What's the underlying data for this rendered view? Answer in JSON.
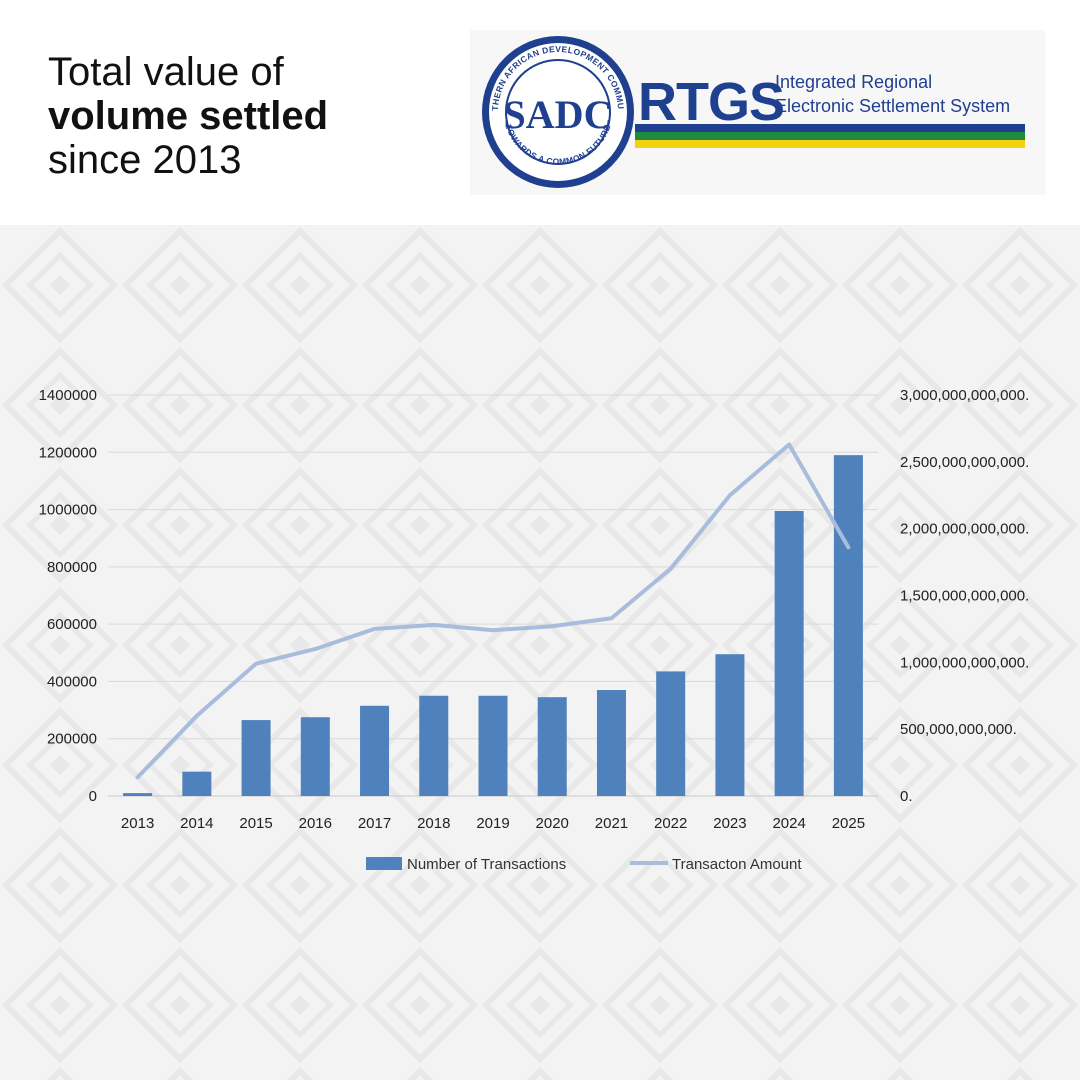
{
  "header": {
    "line1": "Total value of",
    "line2": "volume settled",
    "line3": "since 2013"
  },
  "logo": {
    "ring_top_text": "SOUTHERN AFRICAN DEVELOPMENT COMMUNITY",
    "ring_bottom_text": "TOWARDS A COMMON FUTURE",
    "emblem_text": "SADC",
    "rtgs_text": "RTGS",
    "tagline_line1": "Integrated Regional",
    "tagline_line2": "Electronic Settlement System",
    "stripe_colors": [
      "#1f3f8f",
      "#1f8a3c",
      "#f2d20f"
    ]
  },
  "chart_data": {
    "type": "bar+line",
    "categories": [
      "2013",
      "2014",
      "2015",
      "2016",
      "2017",
      "2018",
      "2019",
      "2020",
      "2021",
      "2022",
      "2023",
      "2024",
      "2025"
    ],
    "series": [
      {
        "name": "Number of Transactions",
        "type": "bar",
        "axis": "left",
        "color": "#4f81bd",
        "values": [
          10000,
          85000,
          265000,
          275000,
          315000,
          350000,
          350000,
          345000,
          370000,
          435000,
          495000,
          995000,
          1190000
        ]
      },
      {
        "name": "Transacton Amount",
        "type": "line",
        "axis": "right",
        "color": "#a8bcdc",
        "values": [
          140000000000,
          600000000000,
          990000000000,
          1100000000000,
          1250000000000,
          1280000000000,
          1240000000000,
          1270000000000,
          1330000000000,
          1700000000000,
          2250000000000,
          2630000000000,
          1860000000000
        ]
      }
    ],
    "y_left": {
      "min": 0,
      "max": 1400000,
      "ticks": [
        "0",
        "200000",
        "400000",
        "600000",
        "800000",
        "1000000",
        "1200000",
        "1400000"
      ]
    },
    "y_right": {
      "min": 0,
      "max": 3000000000000,
      "ticks": [
        "0.",
        "500,000,000,000.",
        "1,000,000,000,000.",
        "1,500,000,000,000.",
        "2,000,000,000,000.",
        "2,500,000,000,000.",
        "3,000,000,000,000."
      ]
    },
    "gridlines": true,
    "legend_position": "bottom"
  }
}
